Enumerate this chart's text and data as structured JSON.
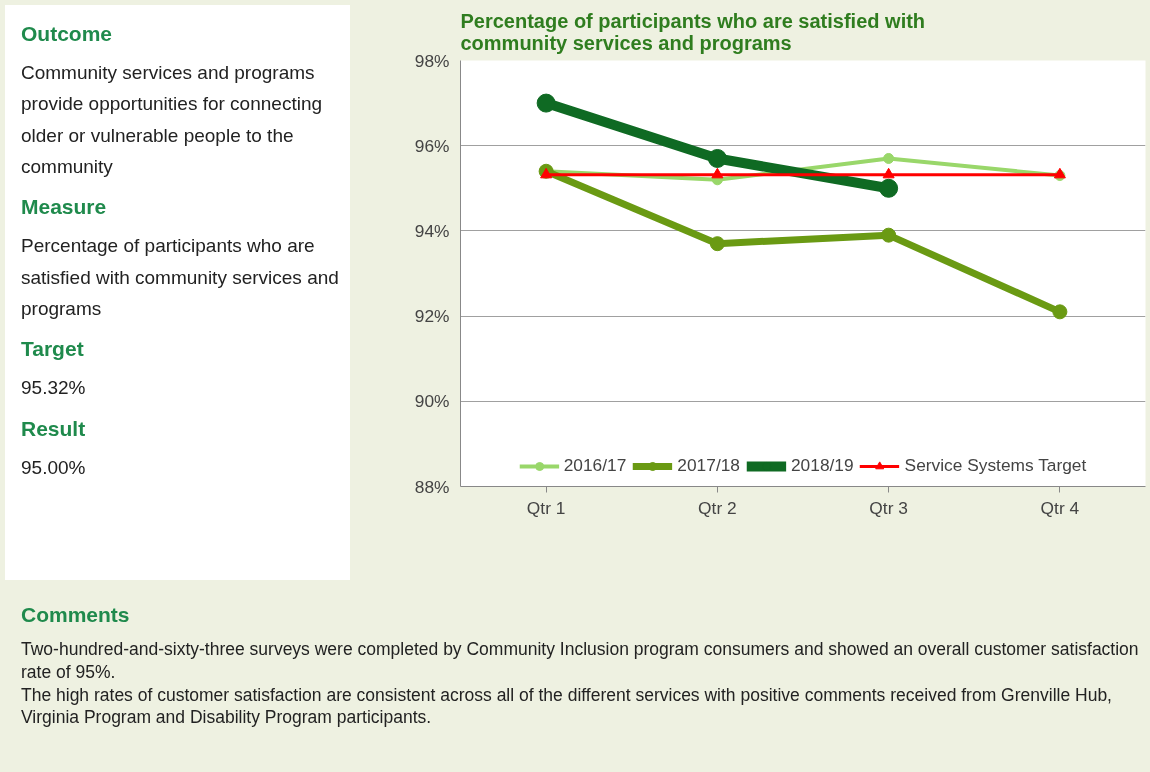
{
  "chart_data": {
    "type": "line",
    "title": "Percentage of participants who are satisfied with\ncommunity services and programs",
    "categories": [
      "Qtr 1",
      "Qtr 2",
      "Qtr 3",
      "Qtr 4"
    ],
    "series": [
      {
        "name": "2016/17",
        "color": "#99d76a",
        "values": [
          95.4,
          95.2,
          95.7,
          95.3
        ],
        "marker": "circle"
      },
      {
        "name": "2017/18",
        "color": "#6a9a13",
        "values": [
          95.4,
          93.7,
          93.9,
          92.1
        ],
        "marker": "circle"
      },
      {
        "name": "2018/19",
        "color": "#0f6a23",
        "values": [
          97.0,
          95.7,
          95.0,
          null
        ],
        "marker": "circle"
      },
      {
        "name": "Service Systems Target",
        "color": "#ff0000",
        "values": [
          95.32,
          95.32,
          95.32,
          95.32
        ],
        "marker": "triangle"
      }
    ],
    "ylim": [
      88,
      98
    ],
    "yticks": [
      {
        "value": 88,
        "label": "88%"
      },
      {
        "value": 90,
        "label": "90%"
      },
      {
        "value": 92,
        "label": "92%"
      },
      {
        "value": 94,
        "label": "94%"
      },
      {
        "value": 96,
        "label": "96%"
      },
      {
        "value": 98,
        "label": "98%"
      }
    ],
    "grid": "y",
    "legend": "bottom",
    "annotations": [
      "Outcome",
      "Community services and programs provide opportunities for connecting older or vulnerable people to the community",
      "Measure",
      "Percentage of participants who are satisfied with community services and programs",
      "Target",
      "95.32%",
      "Result",
      "95.00%",
      "Comments",
      "Two-hundred-and-sixty-three surveys were completed by Community Inclusion program consumers and showed an overall customer satisfaction rate of 95%.\nThe high rates of customer satisfaction are consistent across all of the different services with positive comments received from Grenville Hub, Virginia Program and Disability Program participants."
    ]
  }
}
